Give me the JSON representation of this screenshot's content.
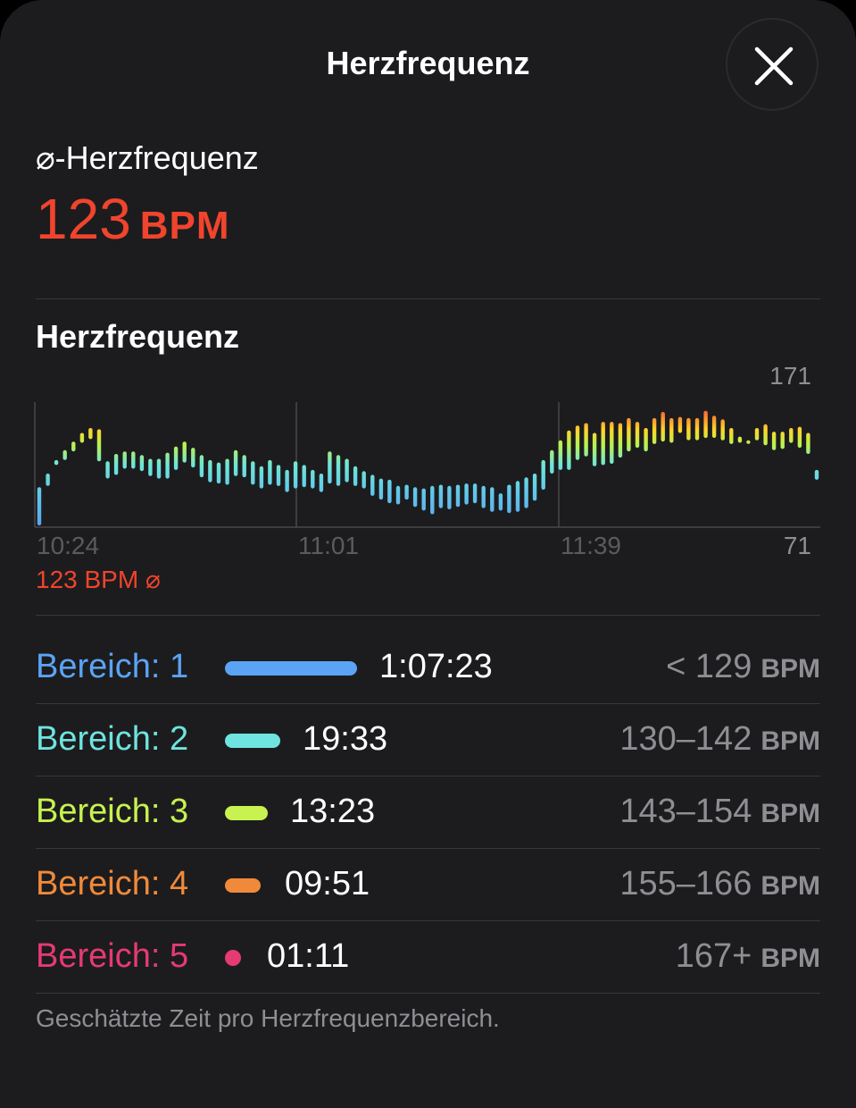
{
  "header": {
    "title": "Herzfrequenz"
  },
  "average": {
    "label": "⌀-Herzfrequenz",
    "value": "123",
    "unit": "BPM"
  },
  "chart_section": {
    "title": "Herzfrequenz",
    "avg_tag": "123 BPM ⌀"
  },
  "colors": {
    "accent_red": "#f0442d",
    "zone1": "#5ba4f5",
    "zone2": "#6fe3df",
    "zone3": "#c7f250",
    "zone4": "#f08a3a",
    "zone5": "#e63a72"
  },
  "chart_data": {
    "type": "bar",
    "subtype": "range-bar",
    "title": "Herzfrequenz",
    "x_ticks": [
      "10:24",
      "11:01",
      "11:39"
    ],
    "y_max_label": "171",
    "y_min_label": "71",
    "ylim": [
      71,
      171
    ],
    "average_bpm": 123,
    "bars": [
      [
        71,
        102
      ],
      [
        103,
        113
      ],
      [
        120,
        124
      ],
      [
        124,
        132
      ],
      [
        131,
        139
      ],
      [
        138,
        146
      ],
      [
        141,
        150
      ],
      [
        123,
        149
      ],
      [
        109,
        123
      ],
      [
        112,
        129
      ],
      [
        117,
        131
      ],
      [
        117,
        131
      ],
      [
        115,
        128
      ],
      [
        111,
        125
      ],
      [
        109,
        125
      ],
      [
        109,
        130
      ],
      [
        116,
        135
      ],
      [
        122,
        139
      ],
      [
        118,
        134
      ],
      [
        110,
        128
      ],
      [
        106,
        124
      ],
      [
        105,
        122
      ],
      [
        104,
        125
      ],
      [
        111,
        132
      ],
      [
        110,
        128
      ],
      [
        104,
        123
      ],
      [
        101,
        119
      ],
      [
        104,
        124
      ],
      [
        103,
        120
      ],
      [
        98,
        116
      ],
      [
        101,
        123
      ],
      [
        102,
        120
      ],
      [
        101,
        116
      ],
      [
        98,
        113
      ],
      [
        105,
        131
      ],
      [
        103,
        128
      ],
      [
        106,
        125
      ],
      [
        103,
        119
      ],
      [
        101,
        115
      ],
      [
        95,
        112
      ],
      [
        92,
        109
      ],
      [
        89,
        108
      ],
      [
        88,
        103
      ],
      [
        92,
        104
      ],
      [
        86,
        102
      ],
      [
        83,
        101
      ],
      [
        80,
        103
      ],
      [
        85,
        104
      ],
      [
        84,
        103
      ],
      [
        86,
        104
      ],
      [
        88,
        105
      ],
      [
        89,
        105
      ],
      [
        85,
        103
      ],
      [
        82,
        102
      ],
      [
        83,
        97
      ],
      [
        81,
        104
      ],
      [
        82,
        107
      ],
      [
        85,
        110
      ],
      [
        91,
        113
      ],
      [
        100,
        124
      ],
      [
        113,
        132
      ],
      [
        116,
        140
      ],
      [
        116,
        148
      ],
      [
        124,
        152
      ],
      [
        127,
        154
      ],
      [
        119,
        146
      ],
      [
        120,
        155
      ],
      [
        121,
        155
      ],
      [
        126,
        154
      ],
      [
        131,
        158
      ],
      [
        134,
        155
      ],
      [
        131,
        150
      ],
      [
        137,
        158
      ],
      [
        139,
        163
      ],
      [
        138,
        158
      ],
      [
        146,
        159
      ],
      [
        140,
        158
      ],
      [
        140,
        158
      ],
      [
        142,
        164
      ],
      [
        142,
        160
      ],
      [
        140,
        157
      ],
      [
        137,
        150
      ],
      [
        138,
        143
      ],
      [
        139,
        140
      ],
      [
        140,
        150
      ],
      [
        136,
        153
      ],
      [
        132,
        147
      ],
      [
        133,
        147
      ],
      [
        138,
        150
      ],
      [
        134,
        151
      ],
      [
        129,
        146
      ],
      [
        108,
        116
      ]
    ]
  },
  "zones": [
    {
      "label": "Bereich: 1",
      "time": "1:07:23",
      "range": "< 129",
      "unit": "BPM",
      "fraction": 1.0
    },
    {
      "label": "Bereich: 2",
      "time": "19:33",
      "range": "130–142",
      "unit": "BPM",
      "fraction": 0.29
    },
    {
      "label": "Bereich: 3",
      "time": "13:23",
      "range": "143–154",
      "unit": "BPM",
      "fraction": 0.2
    },
    {
      "label": "Bereich: 4",
      "time": "09:51",
      "range": "155–166",
      "unit": "BPM",
      "fraction": 0.15
    },
    {
      "label": "Bereich: 5",
      "time": "01:11",
      "range": "167+",
      "unit": "BPM",
      "fraction": 0.018
    }
  ],
  "footnote": "Geschätzte Zeit pro Herzfrequenzbereich."
}
